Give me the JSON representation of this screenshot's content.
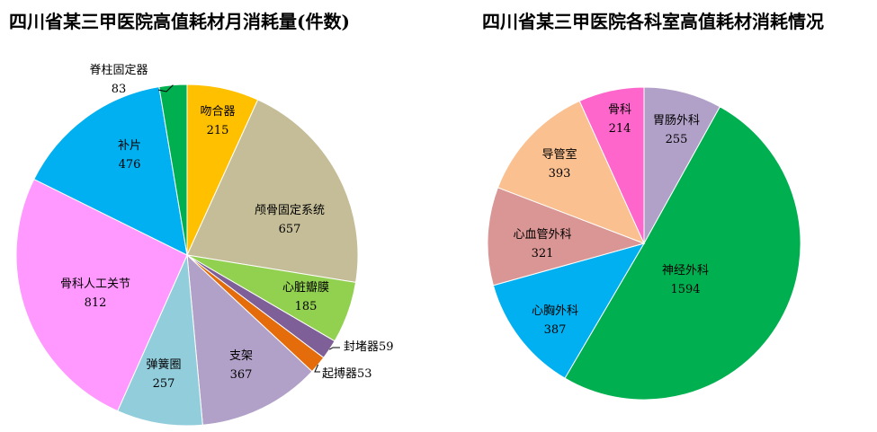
{
  "chart_data": [
    {
      "type": "pie",
      "title": "四川省某三甲医院高值耗材月消耗量(件数)",
      "slices": [
        {
          "label": "吻合器",
          "value": 215,
          "color": "#FFC000"
        },
        {
          "label": "颅骨固定系统",
          "value": 657,
          "color": "#C4BD97"
        },
        {
          "label": "心脏瓣膜",
          "value": 185,
          "color": "#92D050"
        },
        {
          "label": "封堵器",
          "value": 59,
          "display": "封堵器59",
          "color": "#7F5F97"
        },
        {
          "label": "起搏器",
          "value": 53,
          "display": "起搏器53",
          "color": "#E46C0A"
        },
        {
          "label": "支架",
          "value": 367,
          "color": "#B1A0C7"
        },
        {
          "label": "弹簧圈",
          "value": 257,
          "color": "#92CDDC"
        },
        {
          "label": "骨科人工关节",
          "value": 812,
          "color": "#FF99FF"
        },
        {
          "label": "补片",
          "value": 476,
          "color": "#00B0F0"
        },
        {
          "label": "脊柱固定器",
          "value": 83,
          "color": "#00B050"
        }
      ]
    },
    {
      "type": "pie",
      "title": "四川省某三甲医院各科室高值耗材消耗情况",
      "slices": [
        {
          "label": "胃肠外科",
          "value": 255,
          "color": "#B1A0C7"
        },
        {
          "label": "神经外科",
          "value": 1594,
          "color": "#00B050"
        },
        {
          "label": "心胸外科",
          "value": 387,
          "color": "#00B0F0"
        },
        {
          "label": "心血管外科",
          "value": 321,
          "color": "#DA9694"
        },
        {
          "label": "导管室",
          "value": 393,
          "color": "#FAC090"
        },
        {
          "label": "骨科",
          "value": 214,
          "color": "#FF66CC"
        }
      ]
    }
  ]
}
